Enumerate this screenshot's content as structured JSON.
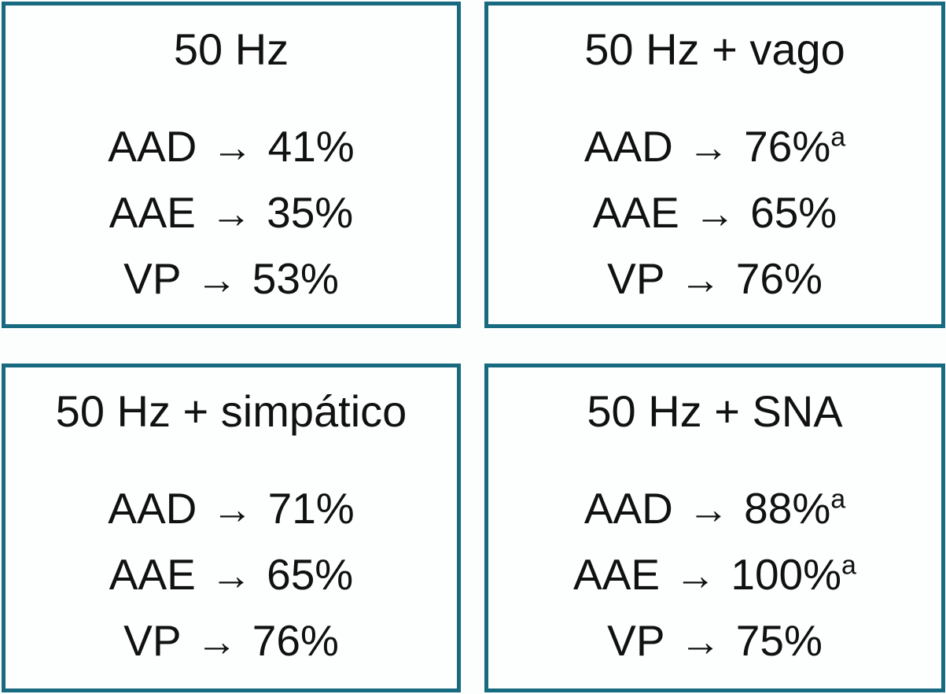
{
  "colors": {
    "border": "#186a80",
    "panel_background": "#fdfefe",
    "page_background": "#fcfdfd",
    "text": "#111111"
  },
  "arrow": "→",
  "panels": [
    {
      "id": "50hz",
      "title": "50 Hz",
      "rows": [
        {
          "label": "AAD",
          "value": "41%",
          "sup": ""
        },
        {
          "label": "AAE",
          "value": "35%",
          "sup": ""
        },
        {
          "label": "VP",
          "value": "53%",
          "sup": ""
        }
      ]
    },
    {
      "id": "50hz-vago",
      "title": "50 Hz + vago",
      "rows": [
        {
          "label": "AAD",
          "value": "76%",
          "sup": "a"
        },
        {
          "label": "AAE",
          "value": "65%",
          "sup": ""
        },
        {
          "label": "VP",
          "value": "76%",
          "sup": ""
        }
      ]
    },
    {
      "id": "50hz-simpatico",
      "title": "50 Hz + simpático",
      "rows": [
        {
          "label": "AAD",
          "value": "71%",
          "sup": ""
        },
        {
          "label": "AAE",
          "value": "65%",
          "sup": ""
        },
        {
          "label": "VP",
          "value": "76%",
          "sup": ""
        }
      ]
    },
    {
      "id": "50hz-sna",
      "title": "50 Hz + SNA",
      "rows": [
        {
          "label": "AAD",
          "value": "88%",
          "sup": "a"
        },
        {
          "label": "AAE",
          "value": "100%",
          "sup": "a"
        },
        {
          "label": "VP",
          "value": "75%",
          "sup": ""
        }
      ]
    }
  ]
}
